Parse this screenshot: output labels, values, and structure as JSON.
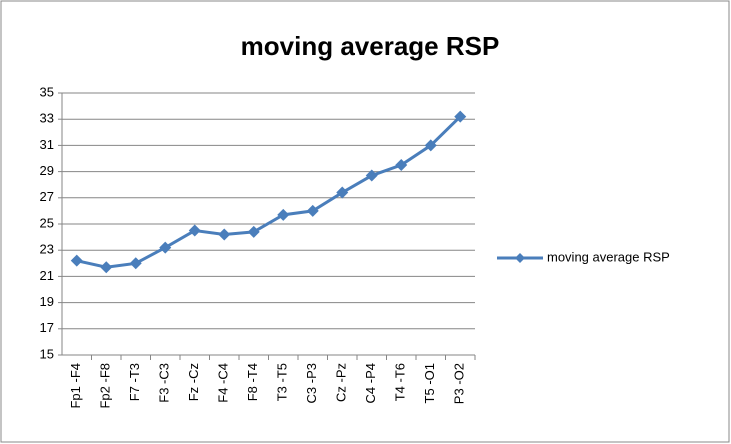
{
  "chart_data": {
    "type": "line",
    "title": "moving average RSP",
    "categories": [
      "Fp1 -F4",
      "Fp2 -F8",
      "F7 -T3",
      "F3 -C3",
      "Fz -Cz",
      "F4 -C4",
      "F8 -T4",
      "T3 -T5",
      "C3 -P3",
      "Cz -Pz",
      "C4 -P4",
      "T4 -T6",
      "T5 -O1",
      "P3 -O2"
    ],
    "series": [
      {
        "name": "moving average RSP",
        "color": "#4a7ebb",
        "values": [
          22.2,
          21.7,
          22.0,
          23.2,
          24.5,
          24.2,
          24.4,
          25.7,
          26.0,
          27.4,
          28.7,
          29.5,
          31.0,
          33.2
        ]
      }
    ],
    "ylim": [
      15,
      35
    ],
    "yticks": [
      15,
      17,
      19,
      21,
      23,
      25,
      27,
      29,
      31,
      33,
      35
    ],
    "grid": true,
    "legend": "right"
  }
}
